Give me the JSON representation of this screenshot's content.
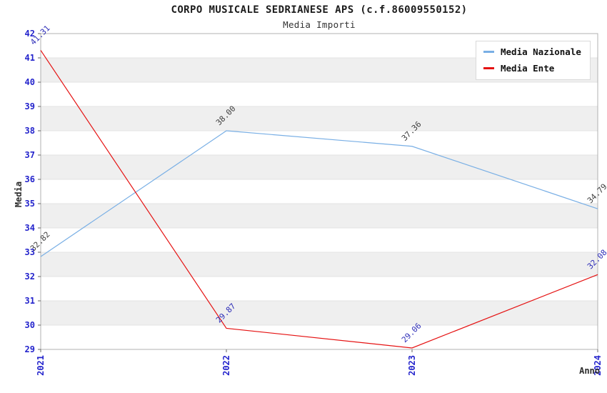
{
  "title": "CORPO MUSICALE SEDRIANESE APS (c.f.86009550152)",
  "subtitle": "Media Importi",
  "legend": {
    "items": [
      {
        "label": "Media Nazionale",
        "color": "#79afe5"
      },
      {
        "label": "Media Ente",
        "color": "#e51212"
      }
    ]
  },
  "chart_data": {
    "type": "line",
    "x": [
      "2021",
      "2022",
      "2023",
      "2024"
    ],
    "series": [
      {
        "name": "Media Nazionale",
        "color": "#79afe5",
        "label_color": "#3f3f3f",
        "values": [
          32.82,
          38.0,
          37.36,
          34.79
        ]
      },
      {
        "name": "Media Ente",
        "color": "#e51212",
        "label_color": "#2e2eb8",
        "values": [
          41.31,
          29.87,
          29.06,
          32.08
        ]
      }
    ],
    "xlabel": "Anno",
    "ylabel": "Media",
    "ylim": [
      29,
      42
    ],
    "ytick_step": 1,
    "yticks": [
      29,
      30,
      31,
      32,
      33,
      34,
      35,
      36,
      37,
      38,
      39,
      40,
      41,
      42
    ],
    "grid": "banded-horizontal",
    "legend_position": "top-right",
    "value_label_rotation": -45,
    "x_tick_rotation": -90,
    "band_color": "#efefef",
    "grid_color": "#e3e3e3",
    "frame_color": "#b0b0b0",
    "tick_color": "#666666",
    "axis_tick_label_color": "#2424cc"
  }
}
